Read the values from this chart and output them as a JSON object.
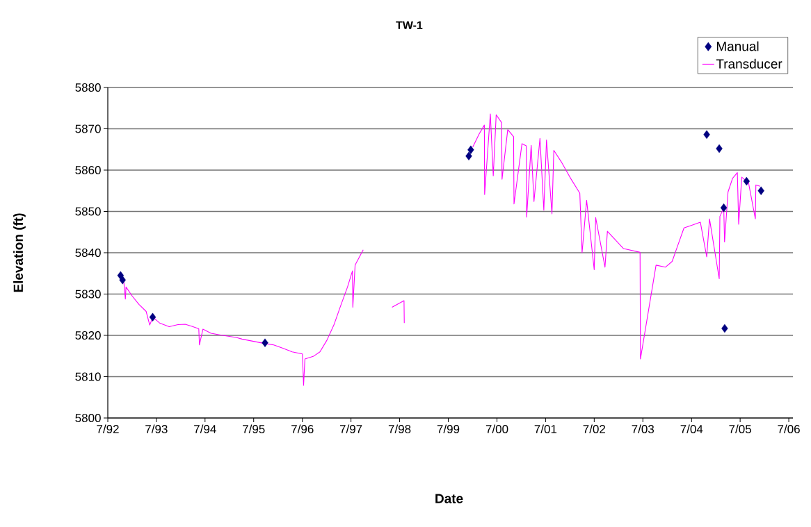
{
  "chart_data": {
    "type": "line",
    "title": "TW-1",
    "xlabel": "Date",
    "ylabel": "Elevation (ft)",
    "xlim": [
      "1992-07-01",
      "2006-08-01"
    ],
    "ylim": [
      5800,
      5880
    ],
    "xticks": [
      {
        "value": "1992-07-01",
        "label": "7/92"
      },
      {
        "value": "1993-07-01",
        "label": "7/93"
      },
      {
        "value": "1994-07-01",
        "label": "7/94"
      },
      {
        "value": "1995-07-01",
        "label": "7/95"
      },
      {
        "value": "1996-07-01",
        "label": "7/96"
      },
      {
        "value": "1997-07-01",
        "label": "7/97"
      },
      {
        "value": "1998-07-01",
        "label": "7/98"
      },
      {
        "value": "1999-07-01",
        "label": "7/99"
      },
      {
        "value": "2000-07-01",
        "label": "7/00"
      },
      {
        "value": "2001-07-01",
        "label": "7/01"
      },
      {
        "value": "2002-07-01",
        "label": "7/02"
      },
      {
        "value": "2003-07-01",
        "label": "7/03"
      },
      {
        "value": "2004-07-01",
        "label": "7/04"
      },
      {
        "value": "2005-07-01",
        "label": "7/05"
      },
      {
        "value": "2006-07-01",
        "label": "7/06"
      }
    ],
    "yticks": [
      5800,
      5810,
      5820,
      5830,
      5840,
      5850,
      5860,
      5870,
      5880
    ],
    "grid": "y",
    "legend": "top right",
    "series": [
      {
        "name": "Manual",
        "type": "scatter",
        "color": "#000080",
        "marker": "diamond",
        "x": [
          "1992-10-05",
          "1992-10-20",
          "1993-06-03",
          "1995-09-24",
          "1999-12-02",
          "1999-12-17",
          "2004-10-23",
          "2005-01-25",
          "2005-02-28",
          "2005-03-07",
          "2005-08-18",
          "2005-12-05"
        ],
        "values": [
          5834.5,
          5833.4,
          5824.4,
          5818.2,
          5863.4,
          5864.9,
          5868.6,
          5865.2,
          5850.9,
          5821.7,
          5857.3,
          5855.0
        ]
      },
      {
        "name": "Transducer",
        "color": "#ff00ff",
        "marker": "none",
        "line_style": "solid",
        "x": [
          "1992-10-30",
          "1992-11-10",
          "1992-11-15",
          "1993-01-01",
          "1993-02-20",
          "1993-04-15",
          "1993-05-12",
          "1993-06-05",
          "1993-07-25",
          "1993-10-05",
          "1993-12-10",
          "1994-02-02",
          "1994-03-25",
          "1994-05-15",
          "1994-05-20",
          "1994-06-15",
          "1994-08-15",
          "1994-11-10",
          "1995-02-20",
          "1995-04-05",
          "1995-09-25",
          "1995-11-28",
          "1996-02-05",
          "1996-04-15",
          "1996-07-01",
          "1996-07-10",
          "1996-07-20",
          "1996-09-20",
          "1996-11-10",
          "1997-01-01",
          "1997-02-25",
          "1997-04-15",
          "1997-06-05",
          "1997-07-12",
          "1997-07-15",
          "1997-08-01",
          "1997-10-01",
          "1998-01-01",
          "1998-05-05",
          "1998-08-03",
          "1998-08-05",
          "1999-01-01",
          "2000-01-01",
          "2000-02-17",
          "2000-03-28",
          "2000-03-30",
          "2000-05-12",
          "2000-06-03",
          "2000-06-25",
          "2000-08-05",
          "2000-08-08",
          "2000-09-20",
          "2000-11-03",
          "2000-11-06",
          "2001-01-05",
          "2001-02-06",
          "2001-02-09",
          "2001-03-15",
          "2001-04-05",
          "2001-05-20",
          "2001-06-18",
          "2001-07-08",
          "2001-08-18",
          "2001-09-01",
          "2001-10-27",
          "2002-01-05",
          "2002-03-15",
          "2002-04-01",
          "2002-05-05",
          "2002-07-01",
          "2002-07-12",
          "2002-09-20",
          "2002-10-08",
          "2003-02-06",
          "2003-06-10",
          "2003-06-13",
          "2003-10-08",
          "2003-12-17",
          "2004-02-06",
          "2004-03-13",
          "2004-05-05",
          "2004-06-28",
          "2004-09-05",
          "2004-10-23",
          "2004-11-13",
          "2005-01-25",
          "2005-01-30",
          "2005-02-28",
          "2005-03-06",
          "2005-04-01",
          "2005-05-05",
          "2005-06-10",
          "2005-06-20",
          "2005-07-13",
          "2005-09-02",
          "2005-10-23",
          "2005-10-27",
          "2005-11-28"
        ],
        "values": [
          5832.8,
          5828.8,
          5831.7,
          5829.5,
          5827.5,
          5825.8,
          5822.5,
          5824.4,
          5823.0,
          5822.1,
          5822.6,
          5822.7,
          5822.2,
          5821.6,
          5817.7,
          5821.5,
          5820.5,
          5820.0,
          5819.5,
          5819.1,
          5818.0,
          5817.7,
          5816.9,
          5816.0,
          5815.5,
          5807.9,
          5814.3,
          5814.9,
          5816.0,
          5818.8,
          5822.7,
          5827.2,
          5831.7,
          5835.6,
          5826.8,
          5837.0,
          5840.7,
          null,
          5826.8,
          5828.4,
          5823.0,
          null,
          5865.6,
          5868.7,
          5870.9,
          5854.1,
          5873.6,
          5858.6,
          5873.4,
          5871.5,
          5857.8,
          5869.8,
          5868.1,
          5851.8,
          5866.4,
          5865.9,
          5848.6,
          5866.0,
          5852.4,
          5867.7,
          5850.3,
          5867.3,
          5849.4,
          5864.8,
          5862.0,
          5858.0,
          5854.4,
          5840.0,
          5852.7,
          5835.9,
          5848.5,
          5836.5,
          5845.2,
          5841.0,
          5840.1,
          5814.3,
          5837.0,
          5836.5,
          5837.9,
          5841.2,
          5846.0,
          5846.6,
          5847.4,
          5839.0,
          5848.2,
          5833.7,
          5848.8,
          5850.8,
          5842.6,
          5854.7,
          5858.0,
          5859.4,
          5846.9,
          5858.3,
          5856.9,
          5848.2,
          5856.4,
          5856.1
        ]
      }
    ]
  }
}
